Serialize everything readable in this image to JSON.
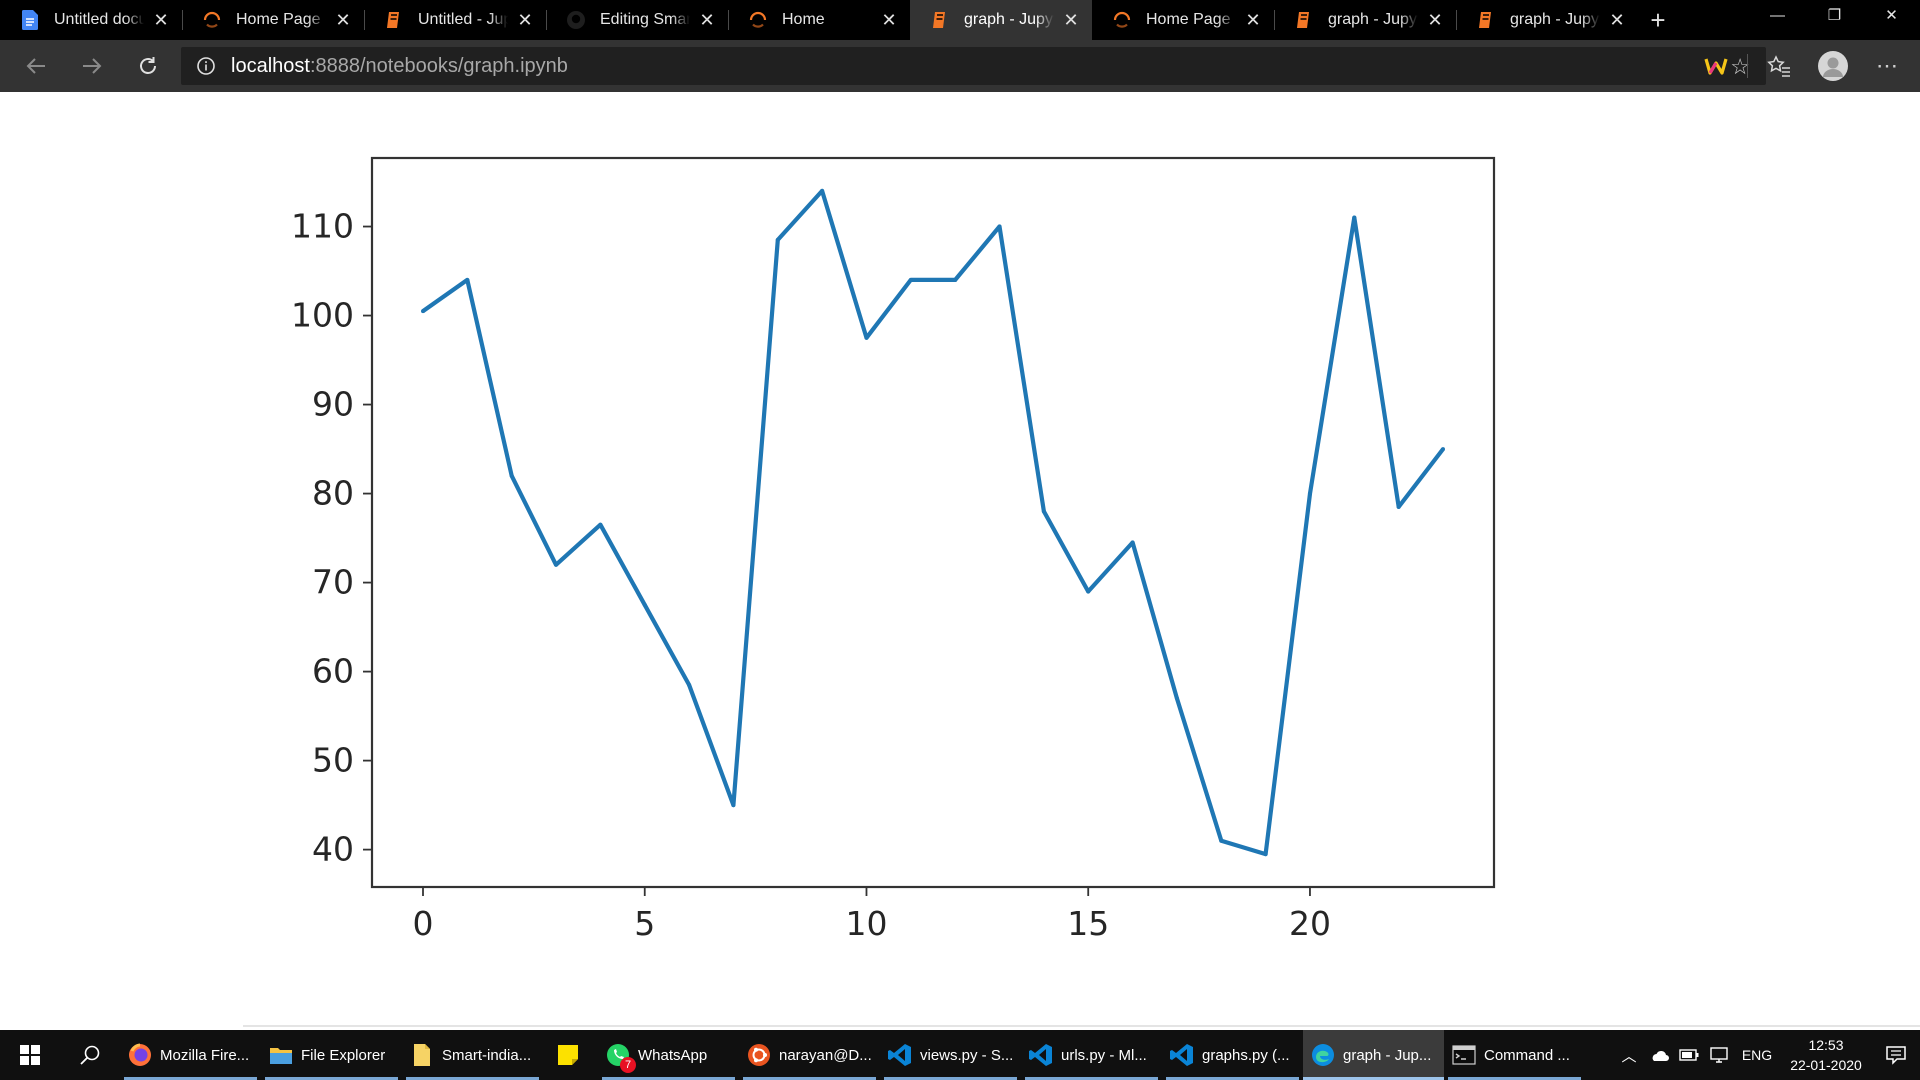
{
  "browser": {
    "tabs": [
      {
        "title": "Untitled document",
        "icon": "google-docs-icon",
        "active": false
      },
      {
        "title": "Home Page - Smart",
        "icon": "loading-spinner-icon",
        "active": false
      },
      {
        "title": "Untitled - Jupyter",
        "icon": "jupyter-icon",
        "active": false
      },
      {
        "title": "Editing Smart-india",
        "icon": "github-icon",
        "active": false
      },
      {
        "title": "Home",
        "icon": "loading-spinner-icon",
        "active": false
      },
      {
        "title": "graph - Jupyter",
        "icon": "jupyter-icon",
        "active": true
      },
      {
        "title": "Home Page - Smart",
        "icon": "loading-spinner-icon",
        "active": false
      },
      {
        "title": "graph - Jupyter",
        "icon": "jupyter-icon",
        "active": false
      },
      {
        "title": "graph - Jupyter",
        "icon": "jupyter-icon",
        "active": false
      }
    ],
    "close_glyph": "✕",
    "new_tab_glyph": "+",
    "window_controls": {
      "minimize": "—",
      "restore": "❐",
      "close": "✕"
    },
    "address": {
      "host": "localhost",
      "rest": ":8888/notebooks/graph.ipynb"
    },
    "colors": {
      "accent_orange": "#f37726",
      "tab_bg": "#000000",
      "active_tab_bg": "#333333"
    }
  },
  "chart_data": {
    "type": "line",
    "x": [
      0,
      1,
      2,
      3,
      4,
      5,
      6,
      7,
      8,
      9,
      10,
      11,
      12,
      13,
      14,
      15,
      16,
      17,
      18,
      19,
      20,
      21,
      22,
      23
    ],
    "series": [
      {
        "values": [
          100.5,
          104,
          82,
          72,
          76.5,
          67.5,
          58.5,
          45,
          108.5,
          114,
          97.5,
          104,
          104,
          110,
          78,
          69,
          74.5,
          57,
          41,
          39.5,
          80,
          111,
          78.5,
          85
        ],
        "color": "#1f77b4"
      }
    ],
    "xticks": [
      0,
      5,
      10,
      15,
      20
    ],
    "yticks": [
      40,
      50,
      60,
      70,
      80,
      90,
      100,
      110
    ],
    "xlim": [
      -1.15,
      24.15
    ],
    "ylim": [
      35.8,
      117.7
    ],
    "title": "",
    "xlabel": "",
    "ylabel": "",
    "grid": false
  },
  "taskbar": {
    "apps": [
      {
        "label": "Mozilla Fire...",
        "icon": "firefox-icon",
        "running": true
      },
      {
        "label": "File Explorer",
        "icon": "folder-icon",
        "running": true
      },
      {
        "label": "Smart-india...",
        "icon": "document-folder-icon",
        "running": true
      },
      {
        "label": "",
        "icon": "sticky-notes-icon",
        "running": false,
        "pinned": true
      },
      {
        "label": "WhatsApp",
        "icon": "whatsapp-icon",
        "running": true,
        "badge": "7"
      },
      {
        "label": "narayan@D...",
        "icon": "ubuntu-icon",
        "running": true
      },
      {
        "label": "views.py - S...",
        "icon": "vscode-icon",
        "running": true
      },
      {
        "label": "urls.py - Ml...",
        "icon": "vscode-icon",
        "running": true
      },
      {
        "label": "graphs.py (...",
        "icon": "vscode-icon",
        "running": true
      },
      {
        "label": "graph - Jup...",
        "icon": "edge-icon",
        "running": true,
        "focused": true
      },
      {
        "label": "Command ...",
        "icon": "cmd-icon",
        "running": true
      }
    ],
    "tray": {
      "language": "ENG",
      "time": "12:53",
      "date": "22-01-2020"
    }
  }
}
